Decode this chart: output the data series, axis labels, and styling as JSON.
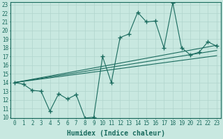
{
  "x": [
    0,
    1,
    2,
    3,
    4,
    5,
    6,
    7,
    8,
    9,
    10,
    11,
    12,
    13,
    14,
    15,
    16,
    17,
    18,
    19,
    20,
    21,
    22,
    23
  ],
  "y": [
    14,
    13.8,
    13.1,
    13.0,
    10.7,
    12.7,
    12.1,
    12.6,
    9.9,
    10.0,
    17.0,
    14.0,
    19.2,
    19.6,
    22.1,
    21.0,
    21.1,
    18.0,
    23.2,
    18.0,
    17.2,
    17.5,
    18.7,
    18.2
  ],
  "trend_lines": [
    {
      "x0": 0,
      "y0": 14.0,
      "x1": 23,
      "y1": 17.1
    },
    {
      "x0": 0,
      "y0": 14.0,
      "x1": 23,
      "y1": 17.7
    },
    {
      "x0": 0,
      "y0": 14.0,
      "x1": 23,
      "y1": 18.3
    }
  ],
  "line_color": "#1a6b5e",
  "marker": "+",
  "bg_color": "#c8e8e0",
  "grid_color": "#b0d4cc",
  "axis_color": "#1a6b5e",
  "xlabel": "Humidex (Indice chaleur)",
  "ylim": [
    10,
    23
  ],
  "xlim": [
    -0.5,
    23.5
  ],
  "yticks": [
    10,
    11,
    12,
    13,
    14,
    15,
    16,
    17,
    18,
    19,
    20,
    21,
    22,
    23
  ],
  "xticks": [
    0,
    1,
    2,
    3,
    4,
    5,
    6,
    7,
    8,
    9,
    10,
    11,
    12,
    13,
    14,
    15,
    16,
    17,
    18,
    19,
    20,
    21,
    22,
    23
  ],
  "tick_fontsize": 5.5,
  "xlabel_fontsize": 7
}
